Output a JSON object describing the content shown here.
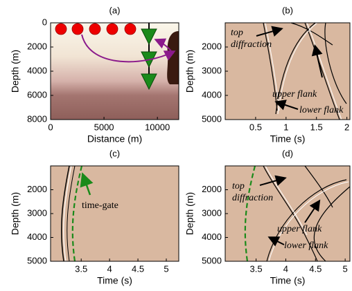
{
  "panels": [
    {
      "label": "(a)",
      "xlabel": "Distance (m)",
      "ylabel": "Depth (m)",
      "xlim": [
        0,
        12000
      ],
      "ylim": [
        0,
        8000
      ],
      "y_inverted": true,
      "xticks": [
        0,
        5000,
        10000
      ],
      "yticks": [
        0,
        2000,
        4000,
        6000,
        8000
      ],
      "annotations": []
    },
    {
      "label": "(b)",
      "xlabel": "Time (s)",
      "ylabel": "Depth (m)",
      "xlim": [
        0,
        2.05
      ],
      "ylim": [
        1000,
        5000
      ],
      "y_inverted": true,
      "xticks": [
        0.5,
        1,
        1.5,
        2
      ],
      "yticks": [
        2000,
        3000,
        4000,
        5000
      ],
      "annotations": [
        {
          "lines": [
            "top",
            "diffraction"
          ]
        },
        {
          "lines": [
            "upper flank"
          ]
        },
        {
          "lines": [
            "lower flank"
          ]
        }
      ]
    },
    {
      "label": "(c)",
      "xlabel": "Time (s)",
      "ylabel": "Depth (m)",
      "xlim": [
        2.96,
        5.22
      ],
      "ylim": [
        1000,
        5000
      ],
      "y_inverted": true,
      "xticks": [
        3.5,
        4,
        4.5,
        5
      ],
      "yticks": [
        2000,
        3000,
        4000,
        5000
      ],
      "annotations": [
        {
          "lines": [
            "time-gate"
          ]
        }
      ]
    },
    {
      "label": "(d)",
      "xlabel": "Time (s)",
      "ylabel": "Depth (m)",
      "xlim": [
        2.98,
        5.08
      ],
      "ylim": [
        1000,
        5000
      ],
      "y_inverted": true,
      "xticks": [
        3.5,
        4,
        4.5,
        5
      ],
      "yticks": [
        2000,
        3000,
        4000,
        5000
      ],
      "annotations": [
        {
          "lines": [
            "top",
            "diffraction"
          ]
        },
        {
          "lines": [
            "upper flank"
          ]
        },
        {
          "lines": [
            "lower flank"
          ]
        }
      ]
    }
  ]
}
